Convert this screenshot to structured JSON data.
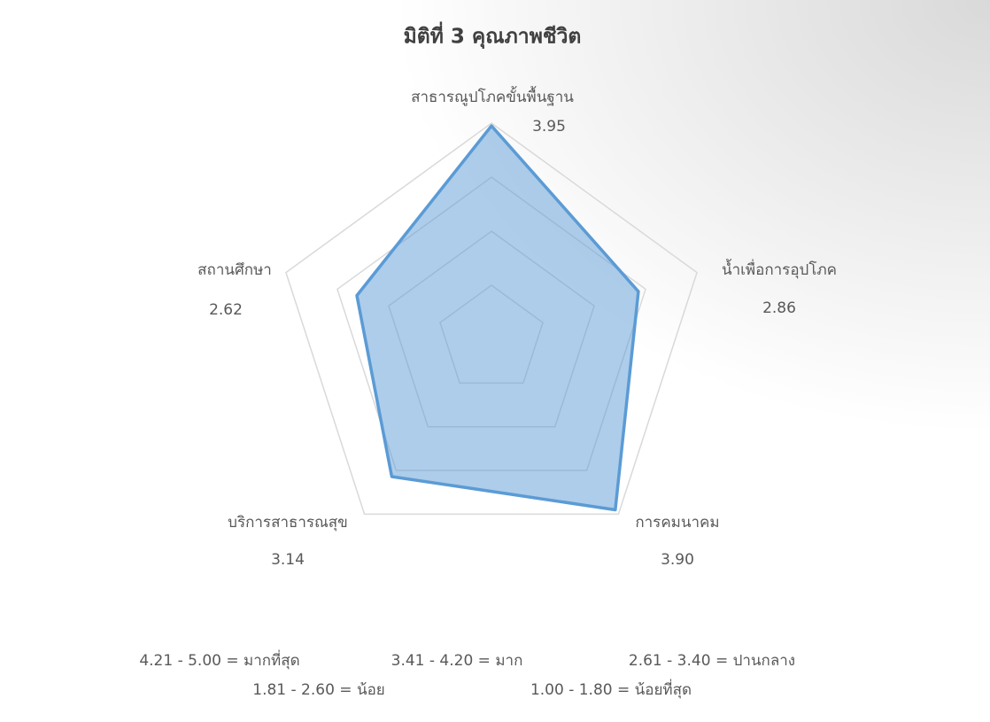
{
  "chart_data": {
    "type": "radar",
    "title": "มิติที่ 3 คุณภาพชีวิต",
    "categories": [
      "สาธารณูปโภคขั้นพื้นฐาน",
      "น้ำเพื่อการอุปโภค",
      "การคมนาคม",
      "บริการสาธารณสุข",
      "สถานศึกษา"
    ],
    "values": [
      3.95,
      2.86,
      3.9,
      3.14,
      2.62
    ],
    "value_labels": [
      "3.95",
      "2.86",
      "3.90",
      "3.14",
      "2.62"
    ],
    "color": "#5b9bd5",
    "ylim": [
      0,
      4
    ],
    "yticks": [
      0,
      1,
      2,
      3,
      4
    ],
    "grid": true,
    "notes": [
      "4.21 - 5.00 = มากที่สุด",
      "3.41 - 4.20 = มาก",
      "2.61 - 3.40 = ปานกลาง",
      "1.81 - 2.60 = น้อย",
      "1.00 - 1.80 = น้อยที่สุด"
    ]
  }
}
